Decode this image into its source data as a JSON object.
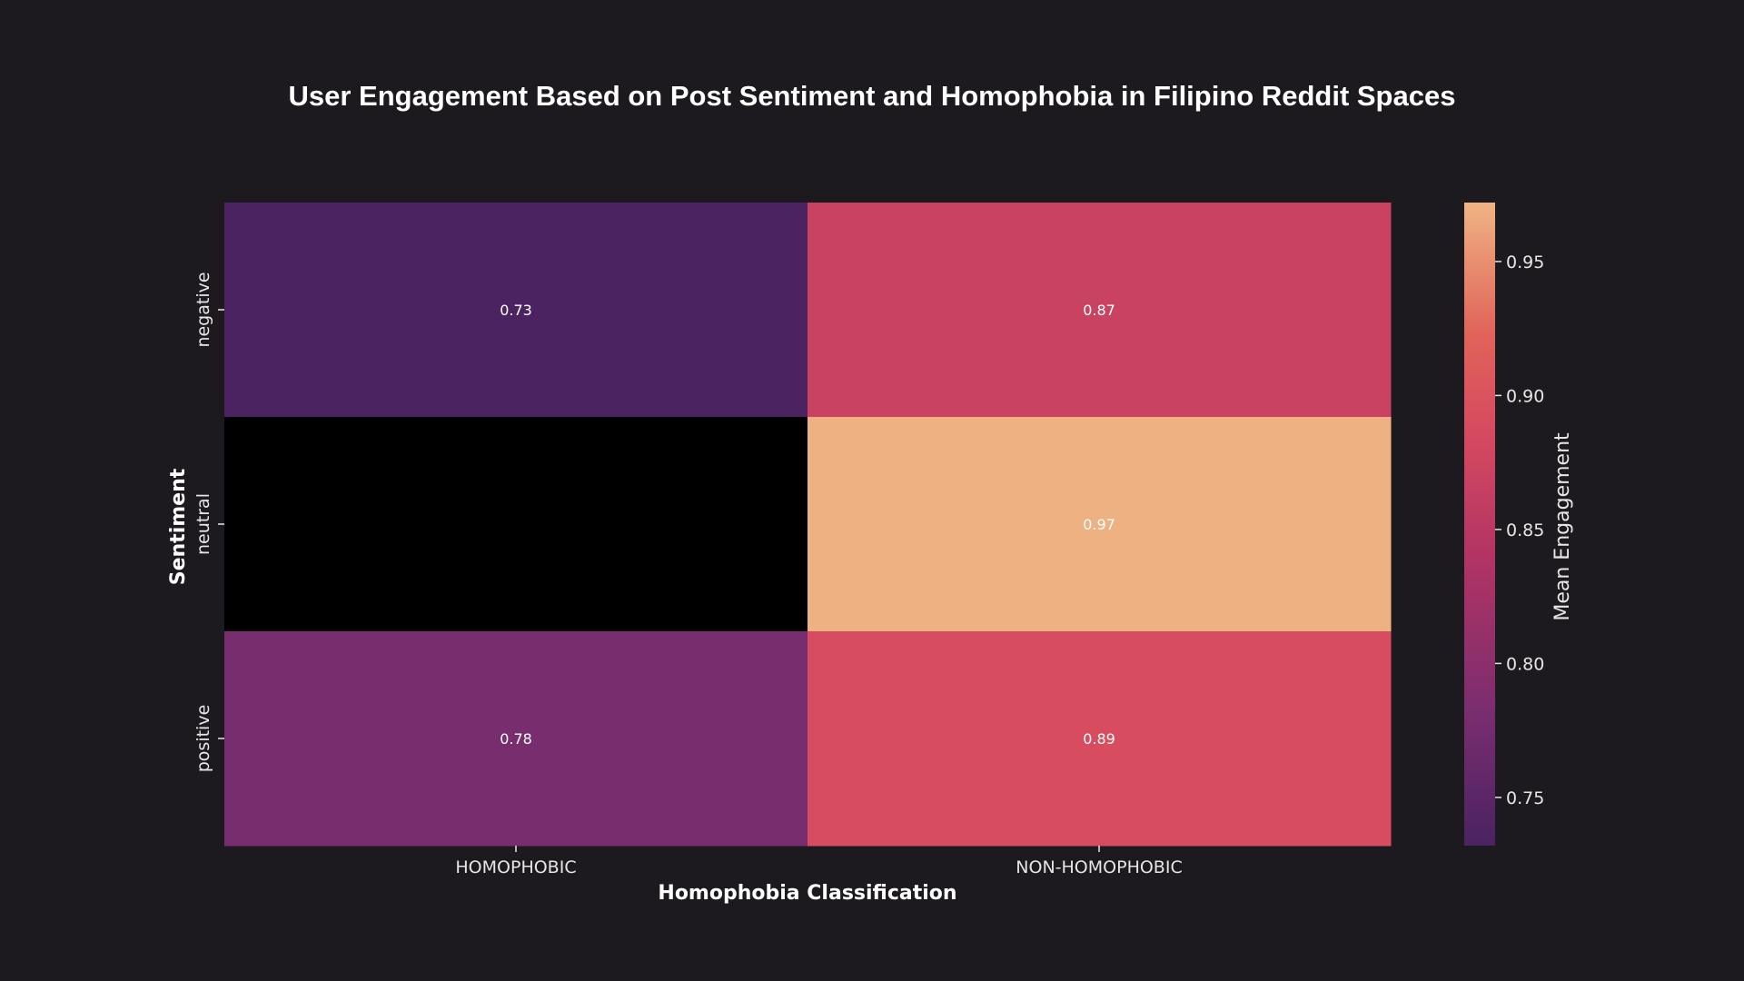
{
  "chart_data": {
    "type": "heatmap",
    "title": "User Engagement Based on Post Sentiment and Homophobia in Filipino Reddit Spaces",
    "xlabel": "Homophobia Classification",
    "ylabel": "Sentiment",
    "x_categories": [
      "HOMOPHOBIC",
      "NON-HOMOPHOBIC"
    ],
    "y_categories": [
      "negative",
      "neutral",
      "positive"
    ],
    "values": [
      [
        0.73,
        0.87
      ],
      [
        null,
        0.97
      ],
      [
        0.78,
        0.89
      ]
    ],
    "cell_labels": [
      [
        "0.73",
        "0.87"
      ],
      [
        "",
        "0.97"
      ],
      [
        "0.78",
        "0.89"
      ]
    ],
    "colorbar": {
      "label": "Mean Engagement",
      "range": [
        0.732,
        0.972
      ],
      "ticks": [
        0.75,
        0.8,
        0.85,
        0.9,
        0.95
      ],
      "tick_labels": [
        "0.75",
        "0.80",
        "0.85",
        "0.90",
        "0.95"
      ],
      "colormap": "flare"
    },
    "missing_color": "#000000",
    "background_color": "#1c1a1e",
    "text_color": "#ffffff",
    "tick_color": "#e6e6e6",
    "grid": false
  }
}
